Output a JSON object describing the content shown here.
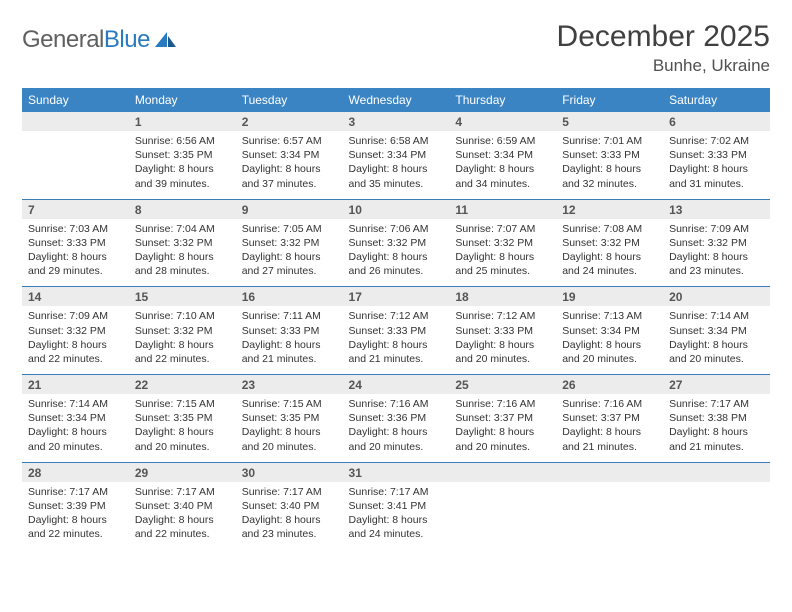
{
  "logo": {
    "text_gray": "General",
    "text_blue": "Blue"
  },
  "title": "December 2025",
  "location": "Bunhe, Ukraine",
  "colors": {
    "header_bg": "#3b84c4",
    "header_text": "#ffffff",
    "daynum_bg": "#ececec",
    "border": "#3b7db4",
    "body_text": "#333333",
    "title_text": "#404040"
  },
  "weekdays": [
    "Sunday",
    "Monday",
    "Tuesday",
    "Wednesday",
    "Thursday",
    "Friday",
    "Saturday"
  ],
  "weeks": [
    {
      "nums": [
        "",
        "1",
        "2",
        "3",
        "4",
        "5",
        "6"
      ],
      "cells": [
        null,
        {
          "sr": "Sunrise: 6:56 AM",
          "ss": "Sunset: 3:35 PM",
          "d1": "Daylight: 8 hours",
          "d2": "and 39 minutes."
        },
        {
          "sr": "Sunrise: 6:57 AM",
          "ss": "Sunset: 3:34 PM",
          "d1": "Daylight: 8 hours",
          "d2": "and 37 minutes."
        },
        {
          "sr": "Sunrise: 6:58 AM",
          "ss": "Sunset: 3:34 PM",
          "d1": "Daylight: 8 hours",
          "d2": "and 35 minutes."
        },
        {
          "sr": "Sunrise: 6:59 AM",
          "ss": "Sunset: 3:34 PM",
          "d1": "Daylight: 8 hours",
          "d2": "and 34 minutes."
        },
        {
          "sr": "Sunrise: 7:01 AM",
          "ss": "Sunset: 3:33 PM",
          "d1": "Daylight: 8 hours",
          "d2": "and 32 minutes."
        },
        {
          "sr": "Sunrise: 7:02 AM",
          "ss": "Sunset: 3:33 PM",
          "d1": "Daylight: 8 hours",
          "d2": "and 31 minutes."
        }
      ]
    },
    {
      "nums": [
        "7",
        "8",
        "9",
        "10",
        "11",
        "12",
        "13"
      ],
      "cells": [
        {
          "sr": "Sunrise: 7:03 AM",
          "ss": "Sunset: 3:33 PM",
          "d1": "Daylight: 8 hours",
          "d2": "and 29 minutes."
        },
        {
          "sr": "Sunrise: 7:04 AM",
          "ss": "Sunset: 3:32 PM",
          "d1": "Daylight: 8 hours",
          "d2": "and 28 minutes."
        },
        {
          "sr": "Sunrise: 7:05 AM",
          "ss": "Sunset: 3:32 PM",
          "d1": "Daylight: 8 hours",
          "d2": "and 27 minutes."
        },
        {
          "sr": "Sunrise: 7:06 AM",
          "ss": "Sunset: 3:32 PM",
          "d1": "Daylight: 8 hours",
          "d2": "and 26 minutes."
        },
        {
          "sr": "Sunrise: 7:07 AM",
          "ss": "Sunset: 3:32 PM",
          "d1": "Daylight: 8 hours",
          "d2": "and 25 minutes."
        },
        {
          "sr": "Sunrise: 7:08 AM",
          "ss": "Sunset: 3:32 PM",
          "d1": "Daylight: 8 hours",
          "d2": "and 24 minutes."
        },
        {
          "sr": "Sunrise: 7:09 AM",
          "ss": "Sunset: 3:32 PM",
          "d1": "Daylight: 8 hours",
          "d2": "and 23 minutes."
        }
      ]
    },
    {
      "nums": [
        "14",
        "15",
        "16",
        "17",
        "18",
        "19",
        "20"
      ],
      "cells": [
        {
          "sr": "Sunrise: 7:09 AM",
          "ss": "Sunset: 3:32 PM",
          "d1": "Daylight: 8 hours",
          "d2": "and 22 minutes."
        },
        {
          "sr": "Sunrise: 7:10 AM",
          "ss": "Sunset: 3:32 PM",
          "d1": "Daylight: 8 hours",
          "d2": "and 22 minutes."
        },
        {
          "sr": "Sunrise: 7:11 AM",
          "ss": "Sunset: 3:33 PM",
          "d1": "Daylight: 8 hours",
          "d2": "and 21 minutes."
        },
        {
          "sr": "Sunrise: 7:12 AM",
          "ss": "Sunset: 3:33 PM",
          "d1": "Daylight: 8 hours",
          "d2": "and 21 minutes."
        },
        {
          "sr": "Sunrise: 7:12 AM",
          "ss": "Sunset: 3:33 PM",
          "d1": "Daylight: 8 hours",
          "d2": "and 20 minutes."
        },
        {
          "sr": "Sunrise: 7:13 AM",
          "ss": "Sunset: 3:34 PM",
          "d1": "Daylight: 8 hours",
          "d2": "and 20 minutes."
        },
        {
          "sr": "Sunrise: 7:14 AM",
          "ss": "Sunset: 3:34 PM",
          "d1": "Daylight: 8 hours",
          "d2": "and 20 minutes."
        }
      ]
    },
    {
      "nums": [
        "21",
        "22",
        "23",
        "24",
        "25",
        "26",
        "27"
      ],
      "cells": [
        {
          "sr": "Sunrise: 7:14 AM",
          "ss": "Sunset: 3:34 PM",
          "d1": "Daylight: 8 hours",
          "d2": "and 20 minutes."
        },
        {
          "sr": "Sunrise: 7:15 AM",
          "ss": "Sunset: 3:35 PM",
          "d1": "Daylight: 8 hours",
          "d2": "and 20 minutes."
        },
        {
          "sr": "Sunrise: 7:15 AM",
          "ss": "Sunset: 3:35 PM",
          "d1": "Daylight: 8 hours",
          "d2": "and 20 minutes."
        },
        {
          "sr": "Sunrise: 7:16 AM",
          "ss": "Sunset: 3:36 PM",
          "d1": "Daylight: 8 hours",
          "d2": "and 20 minutes."
        },
        {
          "sr": "Sunrise: 7:16 AM",
          "ss": "Sunset: 3:37 PM",
          "d1": "Daylight: 8 hours",
          "d2": "and 20 minutes."
        },
        {
          "sr": "Sunrise: 7:16 AM",
          "ss": "Sunset: 3:37 PM",
          "d1": "Daylight: 8 hours",
          "d2": "and 21 minutes."
        },
        {
          "sr": "Sunrise: 7:17 AM",
          "ss": "Sunset: 3:38 PM",
          "d1": "Daylight: 8 hours",
          "d2": "and 21 minutes."
        }
      ]
    },
    {
      "nums": [
        "28",
        "29",
        "30",
        "31",
        "",
        "",
        ""
      ],
      "cells": [
        {
          "sr": "Sunrise: 7:17 AM",
          "ss": "Sunset: 3:39 PM",
          "d1": "Daylight: 8 hours",
          "d2": "and 22 minutes."
        },
        {
          "sr": "Sunrise: 7:17 AM",
          "ss": "Sunset: 3:40 PM",
          "d1": "Daylight: 8 hours",
          "d2": "and 22 minutes."
        },
        {
          "sr": "Sunrise: 7:17 AM",
          "ss": "Sunset: 3:40 PM",
          "d1": "Daylight: 8 hours",
          "d2": "and 23 minutes."
        },
        {
          "sr": "Sunrise: 7:17 AM",
          "ss": "Sunset: 3:41 PM",
          "d1": "Daylight: 8 hours",
          "d2": "and 24 minutes."
        },
        null,
        null,
        null
      ]
    }
  ]
}
